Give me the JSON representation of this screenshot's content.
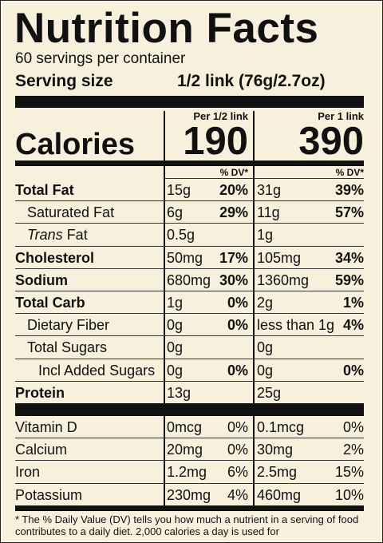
{
  "title": "Nutrition Facts",
  "servings": "60 servings per container",
  "serving_size": {
    "label": "Serving size",
    "value": "1/2 link (76g/2.7oz)"
  },
  "calories": {
    "label": "Calories",
    "col1_head": "Per 1/2 link",
    "col2_head": "Per 1 link",
    "col1": "190",
    "col2": "390"
  },
  "dv_head": "% DV*",
  "nutrients": [
    {
      "name": "Total Fat",
      "bold": true,
      "indent": 0,
      "a1": "15g",
      "p1": "20%",
      "a2": "31g",
      "p2": "39%"
    },
    {
      "name": "Saturated Fat",
      "bold": false,
      "indent": 1,
      "a1": "6g",
      "p1": "29%",
      "a2": "11g",
      "p2": "57%"
    },
    {
      "name_prefix": "Trans",
      "name": " Fat",
      "bold": false,
      "indent": 1,
      "a1": "0.5g",
      "p1": "",
      "a2": "1g",
      "p2": ""
    },
    {
      "name": "Cholesterol",
      "bold": true,
      "indent": 0,
      "a1": "50mg",
      "p1": "17%",
      "a2": "105mg",
      "p2": "34%"
    },
    {
      "name": "Sodium",
      "bold": true,
      "indent": 0,
      "a1": "680mg",
      "p1": "30%",
      "a2": "1360mg",
      "p2": "59%"
    },
    {
      "name": "Total Carb",
      "bold": true,
      "indent": 0,
      "a1": "1g",
      "p1": "0%",
      "a2": "2g",
      "p2": "1%"
    },
    {
      "name": "Dietary Fiber",
      "bold": false,
      "indent": 1,
      "a1": "0g",
      "p1": "0%",
      "a2": "less than 1g",
      "p2": "4%"
    },
    {
      "name": "Total Sugars",
      "bold": false,
      "indent": 1,
      "a1": "0g",
      "p1": "",
      "a2": "0g",
      "p2": ""
    },
    {
      "name": "Incl Added Sugars",
      "bold": false,
      "indent": 2,
      "a1": "0g",
      "p1": "0%",
      "a2": "0g",
      "p2": "0%"
    },
    {
      "name": "Protein",
      "bold": true,
      "indent": 0,
      "a1": "13g",
      "p1": "",
      "a2": "25g",
      "p2": ""
    }
  ],
  "vitamins": [
    {
      "name": "Vitamin D",
      "a1": "0mcg",
      "p1": "0%",
      "a2": "0.1mcg",
      "p2": "0%"
    },
    {
      "name": "Calcium",
      "a1": "20mg",
      "p1": "0%",
      "a2": "30mg",
      "p2": "2%"
    },
    {
      "name": "Iron",
      "a1": "1.2mg",
      "p1": "6%",
      "a2": "2.5mg",
      "p2": "15%"
    },
    {
      "name": "Potassium",
      "a1": "230mg",
      "p1": "4%",
      "a2": "460mg",
      "p2": "10%"
    }
  ],
  "footnote": "* The % Daily Value (DV) tells you how much a nutrient in a serving of food contributes to a daily diet. 2,000 calories a day is used for"
}
